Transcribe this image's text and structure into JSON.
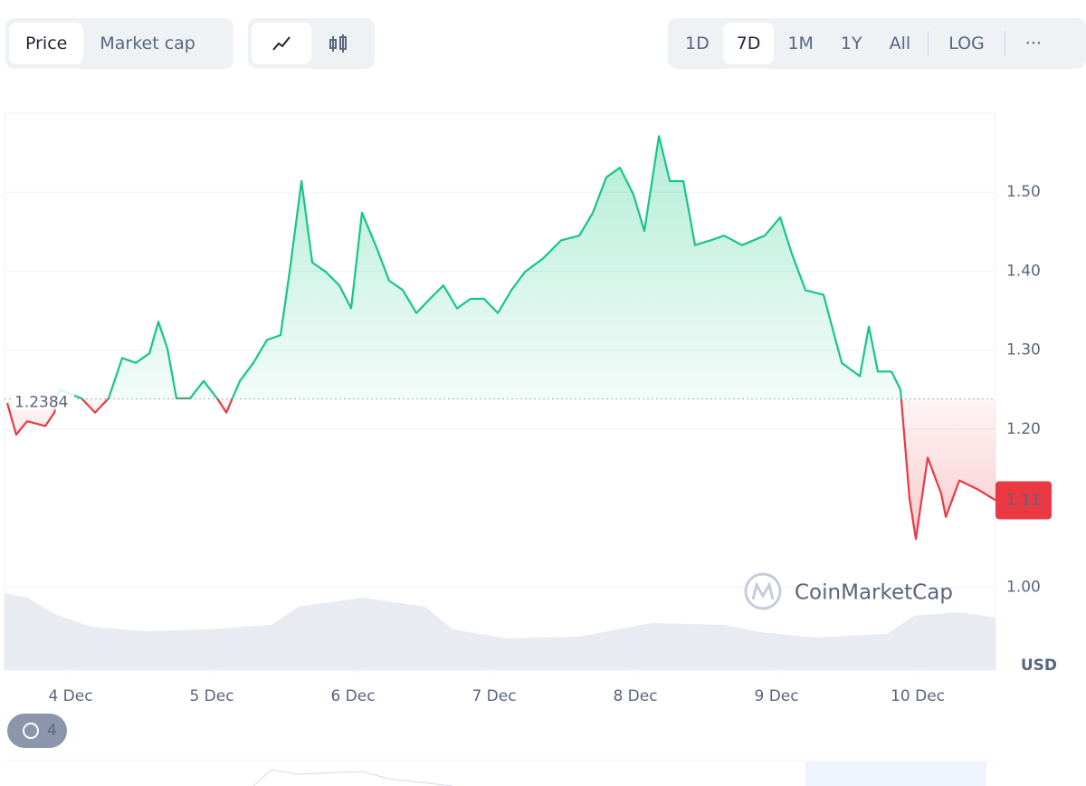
{
  "toolbar": {
    "tabs": [
      "Price",
      "Market cap"
    ],
    "ranges": [
      "1D",
      "7D",
      "1M",
      "1Y",
      "All"
    ],
    "active_range": 1,
    "log": "LOG",
    "more": "···"
  },
  "history_count": 4,
  "chart_data": {
    "type": "line",
    "currency": "USD",
    "watermark": "CoinMarketCap",
    "x": [
      3.551,
      3.615,
      3.692,
      3.821,
      3.885,
      3.917,
      4.077,
      4.173,
      4.269,
      4.365,
      4.462,
      4.558,
      4.622,
      4.686,
      4.75,
      4.846,
      4.942,
      5.038,
      5.103,
      5.199,
      5.295,
      5.391,
      5.487,
      5.551,
      5.635,
      5.712,
      5.808,
      5.904,
      5.987,
      6.064,
      6.16,
      6.256,
      6.353,
      6.449,
      6.545,
      6.641,
      6.737,
      6.833,
      6.929,
      7.026,
      7.122,
      7.218,
      7.346,
      7.474,
      7.603,
      7.699,
      7.795,
      7.891,
      7.987,
      8.064,
      8.167,
      8.244,
      8.34,
      8.423,
      8.532,
      8.628,
      8.756,
      8.917,
      9.026,
      9.109,
      9.205,
      9.333,
      9.462,
      9.59,
      9.654,
      9.718,
      9.814,
      9.878,
      9.942,
      9.987,
      10.071,
      10.167,
      10.199,
      10.295,
      10.423,
      10.551
    ],
    "values": [
      1.233,
      1.193,
      1.21,
      1.204,
      1.221,
      1.25,
      1.239,
      1.221,
      1.239,
      1.29,
      1.284,
      1.296,
      1.336,
      1.302,
      1.239,
      1.239,
      1.261,
      1.239,
      1.221,
      1.261,
      1.284,
      1.313,
      1.319,
      1.399,
      1.514,
      1.411,
      1.399,
      1.382,
      1.353,
      1.474,
      1.433,
      1.388,
      1.376,
      1.347,
      1.365,
      1.382,
      1.353,
      1.365,
      1.365,
      1.347,
      1.376,
      1.399,
      1.416,
      1.439,
      1.445,
      1.474,
      1.519,
      1.531,
      1.497,
      1.451,
      1.571,
      1.514,
      1.514,
      1.433,
      1.439,
      1.445,
      1.433,
      1.445,
      1.468,
      1.422,
      1.376,
      1.37,
      1.284,
      1.267,
      1.33,
      1.273,
      1.273,
      1.25,
      1.112,
      1.061,
      1.164,
      1.118,
      1.089,
      1.135,
      1.124,
      1.11
    ],
    "baseline": 1.2384,
    "up_color": "#16c784",
    "down_color": "#ea3943",
    "xlim": [
      3.532,
      10.551
    ],
    "ylim": [
      0.895,
      1.6
    ],
    "xticks": [
      {
        "value": 4,
        "label": "4 Dec"
      },
      {
        "value": 5,
        "label": "5 Dec"
      },
      {
        "value": 6,
        "label": "6 Dec"
      },
      {
        "value": 7,
        "label": "7 Dec"
      },
      {
        "value": 8,
        "label": "8 Dec"
      },
      {
        "value": 9,
        "label": "9 Dec"
      },
      {
        "value": 10,
        "label": "10 Dec"
      }
    ],
    "yticks": [
      {
        "value": 1,
        "label": "1.00"
      },
      {
        "value": 1.2,
        "label": "1.20"
      },
      {
        "value": 1.3,
        "label": "1.30"
      },
      {
        "value": 1.4,
        "label": "1.40"
      },
      {
        "value": 1.5,
        "label": "1.50"
      }
    ],
    "grid": true
  }
}
